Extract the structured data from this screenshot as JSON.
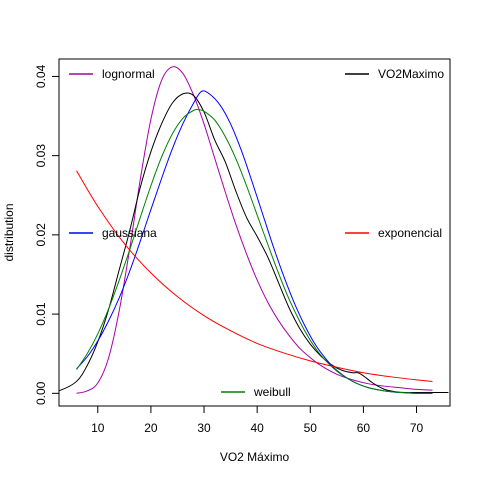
{
  "chart_data": {
    "type": "line",
    "title": "",
    "xlabel": "VO2 Máximo",
    "ylabel": "distribution",
    "xlim": [
      2.7,
      76.3
    ],
    "ylim": [
      -0.0016,
      0.0422
    ],
    "x_ticks": [
      10,
      20,
      30,
      40,
      50,
      60,
      70
    ],
    "y_ticks": [
      0.0,
      0.01,
      0.02,
      0.03,
      0.04
    ],
    "y_tick_labels": [
      "0.00",
      "0.01",
      "0.02",
      "0.03",
      "0.04"
    ],
    "grid": false,
    "series": [
      {
        "name": "lognormal",
        "color": "#aa00aa",
        "legend_position": "top-left",
        "x": [
          6,
          8,
          10,
          12,
          14,
          16,
          18,
          20,
          22,
          24,
          26,
          28,
          30,
          32,
          34,
          36,
          38,
          40,
          42,
          44,
          46,
          48,
          50,
          52,
          55,
          58,
          61,
          64,
          67,
          70,
          73
        ],
        "y": [
          0.0,
          0.0003,
          0.0013,
          0.0044,
          0.0103,
          0.0182,
          0.027,
          0.0346,
          0.0395,
          0.0412,
          0.0404,
          0.0377,
          0.034,
          0.0297,
          0.0254,
          0.0213,
          0.0176,
          0.0143,
          0.0115,
          0.0092,
          0.0073,
          0.0057,
          0.0045,
          0.0035,
          0.0024,
          0.0017,
          0.0012,
          0.0009,
          0.0007,
          0.0005,
          0.0004
        ]
      },
      {
        "name": "VO2Maximo",
        "color": "#000000",
        "legend_position": "top-right",
        "x": [
          0,
          3,
          6,
          8,
          10,
          12,
          14,
          16,
          18,
          20,
          22,
          24,
          26,
          28,
          30,
          32,
          34,
          36,
          38,
          40,
          42,
          44,
          46,
          48,
          50,
          52,
          54,
          56,
          58,
          59,
          60,
          62,
          64,
          66,
          68,
          70,
          73,
          76
        ],
        "y": [
          0.0,
          0.0004,
          0.0015,
          0.0035,
          0.0065,
          0.0105,
          0.0155,
          0.0205,
          0.026,
          0.0305,
          0.034,
          0.0366,
          0.0378,
          0.0376,
          0.0355,
          0.032,
          0.0292,
          0.0255,
          0.0222,
          0.0198,
          0.0172,
          0.014,
          0.0108,
          0.0082,
          0.0062,
          0.0047,
          0.0036,
          0.0029,
          0.0026,
          0.0026,
          0.0022,
          0.0012,
          0.0005,
          0.0002,
          0.0001,
          0.0001,
          0.0001,
          0.0001
        ]
      },
      {
        "name": "gaussiana",
        "color": "#0000ff",
        "legend_position": "center-left",
        "x": [
          6,
          8,
          10,
          12,
          14,
          16,
          18,
          20,
          22,
          24,
          26,
          28,
          29.5,
          31,
          33,
          35,
          37,
          39,
          41,
          43,
          45,
          47,
          49,
          51,
          53,
          55,
          58,
          61,
          64,
          67,
          70,
          73
        ],
        "y": [
          0.0031,
          0.0046,
          0.0066,
          0.0091,
          0.012,
          0.0154,
          0.0192,
          0.0232,
          0.0271,
          0.0308,
          0.034,
          0.0366,
          0.0381,
          0.0378,
          0.0364,
          0.034,
          0.0307,
          0.0268,
          0.0227,
          0.0186,
          0.0148,
          0.0114,
          0.0085,
          0.0061,
          0.0043,
          0.0029,
          0.0015,
          0.0007,
          0.0003,
          0.0001,
          0.0,
          0.0
        ]
      },
      {
        "name": "exponencial",
        "color": "#ff0000",
        "legend_position": "center-right",
        "x": [
          6,
          10,
          15,
          20,
          25,
          30,
          35,
          40,
          45,
          50,
          55,
          60,
          65,
          70,
          73
        ],
        "y": [
          0.0281,
          0.0236,
          0.0189,
          0.0152,
          0.0122,
          0.0098,
          0.0079,
          0.0063,
          0.0051,
          0.0041,
          0.0033,
          0.0026,
          0.0021,
          0.0017,
          0.0015
        ]
      },
      {
        "name": "weibull",
        "color": "#008000",
        "legend_position": "bottom",
        "x": [
          6,
          8,
          10,
          12,
          14,
          16,
          18,
          20,
          22,
          24,
          26,
          28,
          29,
          30,
          32,
          34,
          36,
          38,
          40,
          42,
          44,
          46,
          48,
          50,
          52,
          55,
          58,
          61,
          64,
          67,
          70,
          73
        ],
        "y": [
          0.003,
          0.005,
          0.0075,
          0.0106,
          0.0142,
          0.0181,
          0.0222,
          0.0262,
          0.0298,
          0.0327,
          0.0347,
          0.0357,
          0.0358,
          0.0356,
          0.0345,
          0.0324,
          0.0296,
          0.0262,
          0.0225,
          0.0188,
          0.0152,
          0.0119,
          0.0091,
          0.0067,
          0.0048,
          0.0028,
          0.0015,
          0.0007,
          0.0003,
          0.0001,
          0.0,
          0.0
        ]
      }
    ]
  }
}
